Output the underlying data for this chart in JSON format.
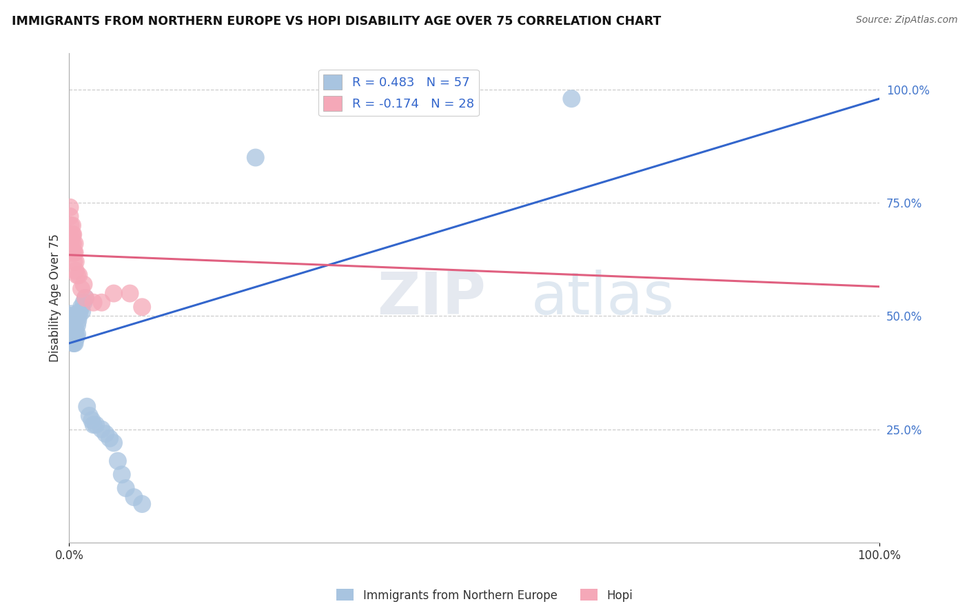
{
  "title": "IMMIGRANTS FROM NORTHERN EUROPE VS HOPI DISABILITY AGE OVER 75 CORRELATION CHART",
  "source": "Source: ZipAtlas.com",
  "ylabel": "Disability Age Over 75",
  "legend_blue_r": "R = 0.483",
  "legend_blue_n": "N = 57",
  "legend_pink_r": "R = -0.174",
  "legend_pink_n": "N = 28",
  "legend_blue_label": "Immigrants from Northern Europe",
  "legend_pink_label": "Hopi",
  "blue_color": "#a8c4e0",
  "pink_color": "#f5a8b8",
  "blue_line_color": "#3366cc",
  "pink_line_color": "#e06080",
  "background_color": "#ffffff",
  "watermark_zip": "ZIP",
  "watermark_atlas": "atlas",
  "grid_color": "#cccccc",
  "right_tick_color": "#4477cc",
  "blue_scatter_x": [
    0.001,
    0.001,
    0.001,
    0.001,
    0.001,
    0.002,
    0.002,
    0.002,
    0.002,
    0.002,
    0.002,
    0.003,
    0.003,
    0.003,
    0.003,
    0.003,
    0.003,
    0.004,
    0.004,
    0.004,
    0.004,
    0.005,
    0.005,
    0.005,
    0.006,
    0.006,
    0.006,
    0.007,
    0.007,
    0.008,
    0.008,
    0.009,
    0.01,
    0.01,
    0.011,
    0.012,
    0.013,
    0.015,
    0.016,
    0.018,
    0.02,
    0.022,
    0.025,
    0.028,
    0.03,
    0.033,
    0.04,
    0.045,
    0.05,
    0.055,
    0.06,
    0.065,
    0.07,
    0.08,
    0.09,
    0.23,
    0.62
  ],
  "blue_scatter_y": [
    0.49,
    0.49,
    0.495,
    0.5,
    0.5,
    0.48,
    0.485,
    0.49,
    0.495,
    0.5,
    0.505,
    0.46,
    0.465,
    0.47,
    0.48,
    0.49,
    0.5,
    0.45,
    0.46,
    0.47,
    0.48,
    0.44,
    0.45,
    0.46,
    0.44,
    0.45,
    0.46,
    0.44,
    0.46,
    0.45,
    0.47,
    0.455,
    0.46,
    0.48,
    0.49,
    0.5,
    0.51,
    0.52,
    0.51,
    0.53,
    0.54,
    0.3,
    0.28,
    0.27,
    0.26,
    0.26,
    0.25,
    0.24,
    0.23,
    0.22,
    0.18,
    0.15,
    0.12,
    0.1,
    0.085,
    0.85,
    0.98
  ],
  "pink_scatter_x": [
    0.001,
    0.001,
    0.002,
    0.002,
    0.003,
    0.003,
    0.003,
    0.004,
    0.004,
    0.005,
    0.005,
    0.005,
    0.006,
    0.006,
    0.007,
    0.007,
    0.008,
    0.008,
    0.01,
    0.012,
    0.015,
    0.018,
    0.02,
    0.03,
    0.04,
    0.055,
    0.075,
    0.09
  ],
  "pink_scatter_y": [
    0.72,
    0.74,
    0.67,
    0.7,
    0.66,
    0.68,
    0.64,
    0.68,
    0.7,
    0.64,
    0.66,
    0.68,
    0.62,
    0.64,
    0.64,
    0.66,
    0.6,
    0.62,
    0.59,
    0.59,
    0.56,
    0.57,
    0.54,
    0.53,
    0.53,
    0.55,
    0.55,
    0.52
  ],
  "blue_line_x": [
    0.0,
    1.0
  ],
  "blue_line_y": [
    0.44,
    0.98
  ],
  "pink_line_x": [
    0.0,
    1.0
  ],
  "pink_line_y": [
    0.635,
    0.565
  ],
  "xlim": [
    0.0,
    1.0
  ],
  "ylim": [
    0.0,
    1.08
  ],
  "yticks": [
    0.25,
    0.5,
    0.75,
    1.0
  ],
  "ytick_labels": [
    "25.0%",
    "50.0%",
    "75.0%",
    "100.0%"
  ]
}
